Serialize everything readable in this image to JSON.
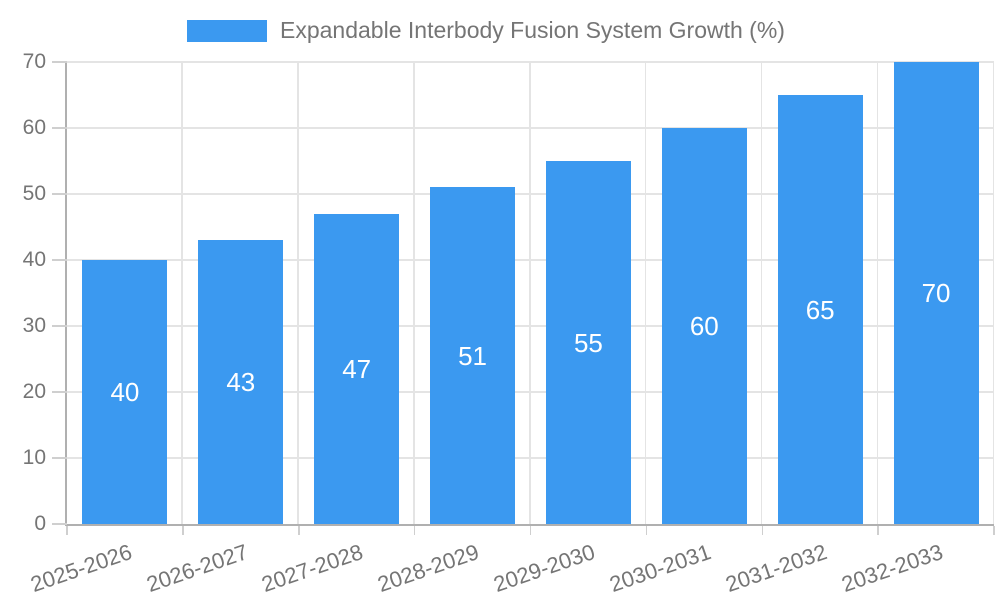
{
  "legend": {
    "label": "Expandable Interbody Fusion System Growth (%)"
  },
  "colors": {
    "bar": "#3b99f0",
    "value_label": "#ffffff",
    "axis_text": "#757575",
    "grid_line": "#e4e4e4",
    "axis_line": "#b0b0b0",
    "tick": "#cfcfcf"
  },
  "chart_data": {
    "type": "bar",
    "title": "Expandable Interbody Fusion System Growth (%)",
    "categories": [
      "2025-2026",
      "2026-2027",
      "2027-2028",
      "2028-2029",
      "2029-2030",
      "2030-2031",
      "2031-2032",
      "2032-2033"
    ],
    "values": [
      40,
      43,
      47,
      51,
      55,
      60,
      65,
      70
    ],
    "series": [
      {
        "name": "Expandable Interbody Fusion System Growth (%)",
        "values": [
          40,
          43,
          47,
          51,
          55,
          60,
          65,
          70
        ]
      }
    ],
    "value_labels": [
      "40",
      "43",
      "47",
      "51",
      "55",
      "60",
      "65",
      "70"
    ],
    "value_label_position": "inside-center",
    "xlabel": "",
    "ylabel": "",
    "ylim": [
      0,
      70
    ],
    "yticks": [
      0,
      10,
      20,
      30,
      40,
      50,
      60,
      70
    ],
    "grid": "on",
    "legend_position": "top-center",
    "x_label_rotation_deg": -19
  }
}
